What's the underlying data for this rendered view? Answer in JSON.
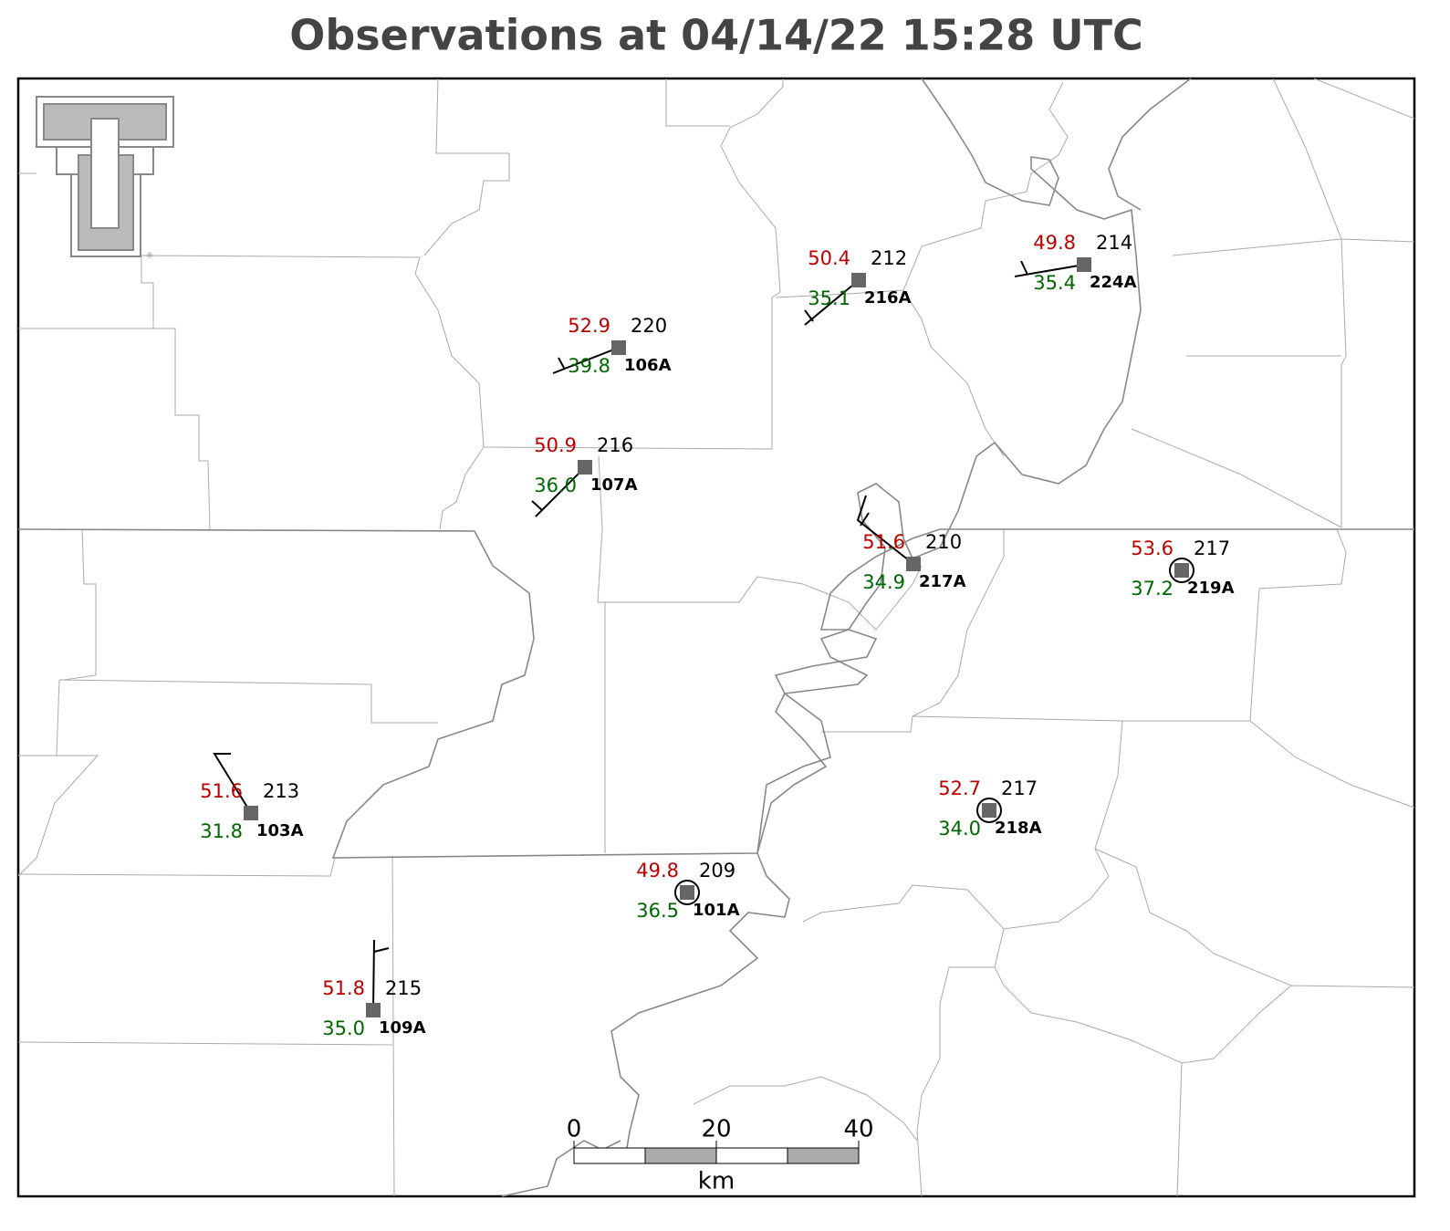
{
  "header": {
    "title": "Observations at 04/14/22 15:28 UTC"
  },
  "stations": [
    {
      "temperature": "52.9",
      "pressure": "220",
      "dewpoint": "39.8",
      "id": "106A"
    },
    {
      "temperature": "50.9",
      "pressure": "216",
      "dewpoint": "36.0",
      "id": "107A"
    },
    {
      "temperature": "50.4",
      "pressure": "212",
      "dewpoint": "35.1",
      "id": "216A"
    },
    {
      "temperature": "49.8",
      "pressure": "214",
      "dewpoint": "35.4",
      "id": "224A"
    },
    {
      "temperature": "51.6",
      "pressure": "210",
      "dewpoint": "34.9",
      "id": "217A"
    },
    {
      "temperature": "53.6",
      "pressure": "217",
      "dewpoint": "37.2",
      "id": "219A"
    },
    {
      "temperature": "51.6",
      "pressure": "213",
      "dewpoint": "31.8",
      "id": "103A"
    },
    {
      "temperature": "52.7",
      "pressure": "217",
      "dewpoint": "34.0",
      "id": "218A"
    },
    {
      "temperature": "49.8",
      "pressure": "209",
      "dewpoint": "36.5",
      "id": "101A"
    },
    {
      "temperature": "51.8",
      "pressure": "215",
      "dewpoint": "35.0",
      "id": "109A"
    }
  ],
  "scale_bar": {
    "labels": [
      "0",
      "20",
      "40"
    ],
    "unit": "km"
  }
}
